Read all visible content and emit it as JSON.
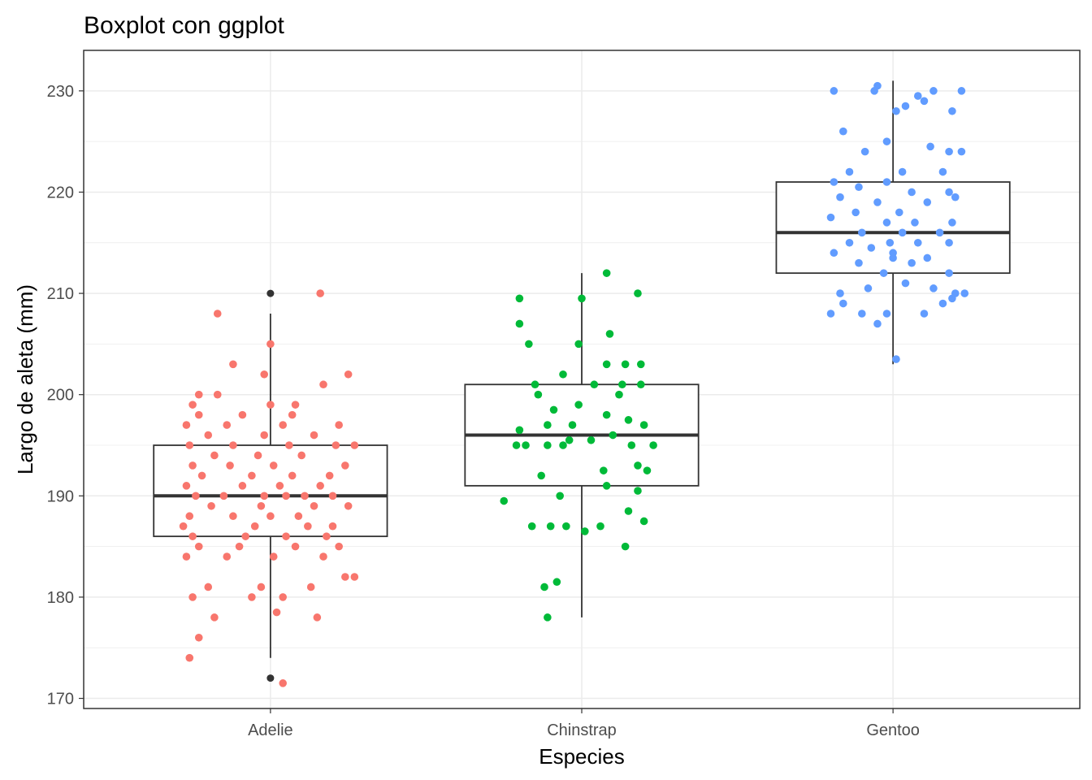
{
  "chart_data": {
    "type": "boxplot",
    "title": "Boxplot con ggplot",
    "xlabel": "Especies",
    "ylabel": "Largo de aleta (mm)",
    "categories": [
      "Adelie",
      "Chinstrap",
      "Gentoo"
    ],
    "ylim": [
      169,
      234
    ],
    "yticks": [
      170,
      180,
      190,
      200,
      210,
      220,
      230
    ],
    "grid": true,
    "legend": "none",
    "colors": {
      "Adelie": "#F8766D",
      "Chinstrap": "#00BA38",
      "Gentoo": "#619CFF",
      "box": "#333333",
      "grid": "#ebebeb",
      "panel_border": "#333333"
    },
    "boxes": [
      {
        "category": "Adelie",
        "q1": 186,
        "median": 190,
        "q3": 195,
        "whisker_low": 174,
        "whisker_high": 208,
        "outliers": [
          172,
          210
        ]
      },
      {
        "category": "Chinstrap",
        "q1": 191,
        "median": 196,
        "q3": 201,
        "whisker_low": 178,
        "whisker_high": 212,
        "outliers": []
      },
      {
        "category": "Gentoo",
        "q1": 212,
        "median": 216,
        "q3": 221,
        "whisker_low": 203,
        "whisker_high": 231,
        "outliers": []
      }
    ],
    "points": {
      "Adelie": [
        [
          -0.26,
          174.0
        ],
        [
          -0.23,
          176.0
        ],
        [
          -0.18,
          178.0
        ],
        [
          0.02,
          178.5
        ],
        [
          0.15,
          178.0
        ],
        [
          -0.06,
          180.0
        ],
        [
          0.04,
          180.0
        ],
        [
          -0.25,
          180.0
        ],
        [
          -0.2,
          181.0
        ],
        [
          -0.03,
          181.0
        ],
        [
          0.13,
          181.0
        ],
        [
          0.24,
          182.0
        ],
        [
          0.27,
          182.0
        ],
        [
          -0.27,
          184.0
        ],
        [
          -0.14,
          184.0
        ],
        [
          0.01,
          184.0
        ],
        [
          0.17,
          184.0
        ],
        [
          -0.23,
          185.0
        ],
        [
          -0.1,
          185.0
        ],
        [
          0.08,
          185.0
        ],
        [
          0.22,
          185.0
        ],
        [
          -0.25,
          186.0
        ],
        [
          -0.08,
          186.0
        ],
        [
          0.05,
          186.0
        ],
        [
          0.18,
          186.0
        ],
        [
          -0.28,
          187.0
        ],
        [
          -0.05,
          187.0
        ],
        [
          0.12,
          187.0
        ],
        [
          0.2,
          187.0
        ],
        [
          -0.26,
          188.0
        ],
        [
          -0.12,
          188.0
        ],
        [
          0.0,
          188.0
        ],
        [
          0.09,
          188.0
        ],
        [
          -0.19,
          189.0
        ],
        [
          -0.03,
          189.0
        ],
        [
          0.14,
          189.0
        ],
        [
          0.25,
          189.0
        ],
        [
          -0.24,
          190.0
        ],
        [
          -0.15,
          190.0
        ],
        [
          -0.02,
          190.0
        ],
        [
          0.05,
          190.0
        ],
        [
          0.11,
          190.0
        ],
        [
          0.2,
          190.0
        ],
        [
          -0.27,
          191.0
        ],
        [
          -0.09,
          191.0
        ],
        [
          0.03,
          191.0
        ],
        [
          0.16,
          191.0
        ],
        [
          -0.22,
          192.0
        ],
        [
          -0.06,
          192.0
        ],
        [
          0.07,
          192.0
        ],
        [
          0.19,
          192.0
        ],
        [
          -0.25,
          193.0
        ],
        [
          -0.13,
          193.0
        ],
        [
          0.01,
          193.0
        ],
        [
          0.24,
          193.0
        ],
        [
          -0.18,
          194.0
        ],
        [
          -0.04,
          194.0
        ],
        [
          0.1,
          194.0
        ],
        [
          -0.26,
          195.0
        ],
        [
          -0.12,
          195.0
        ],
        [
          0.06,
          195.0
        ],
        [
          0.21,
          195.0
        ],
        [
          0.27,
          195.0
        ],
        [
          -0.2,
          196.0
        ],
        [
          -0.02,
          196.0
        ],
        [
          0.14,
          196.0
        ],
        [
          -0.27,
          197.0
        ],
        [
          -0.14,
          197.0
        ],
        [
          0.04,
          197.0
        ],
        [
          0.22,
          197.0
        ],
        [
          -0.23,
          198.0
        ],
        [
          -0.09,
          198.0
        ],
        [
          0.07,
          198.0
        ],
        [
          -0.25,
          199.0
        ],
        [
          0.0,
          199.0
        ],
        [
          0.08,
          199.0
        ],
        [
          -0.17,
          200.0
        ],
        [
          -0.23,
          200.0
        ],
        [
          0.17,
          201.0
        ],
        [
          -0.02,
          202.0
        ],
        [
          0.25,
          202.0
        ],
        [
          -0.12,
          203.0
        ],
        [
          0.0,
          205.0
        ],
        [
          -0.17,
          208.0
        ],
        [
          0.16,
          210.0
        ],
        [
          0.04,
          171.5
        ]
      ],
      "Chinstrap": [
        [
          -0.11,
          178.0
        ],
        [
          -0.12,
          181.0
        ],
        [
          -0.08,
          181.5
        ],
        [
          -0.16,
          187.0
        ],
        [
          -0.1,
          187.0
        ],
        [
          -0.05,
          187.0
        ],
        [
          0.01,
          186.5
        ],
        [
          0.06,
          187.0
        ],
        [
          0.2,
          187.5
        ],
        [
          0.14,
          185.0
        ],
        [
          0.15,
          188.5
        ],
        [
          -0.25,
          189.5
        ],
        [
          -0.07,
          190.0
        ],
        [
          0.08,
          191.0
        ],
        [
          0.18,
          190.5
        ],
        [
          -0.13,
          192.0
        ],
        [
          0.07,
          192.5
        ],
        [
          0.18,
          193.0
        ],
        [
          0.21,
          192.5
        ],
        [
          -0.21,
          195.0
        ],
        [
          -0.18,
          195.0
        ],
        [
          -0.11,
          195.0
        ],
        [
          -0.06,
          195.0
        ],
        [
          -0.04,
          195.5
        ],
        [
          0.03,
          195.5
        ],
        [
          0.1,
          196.0
        ],
        [
          0.16,
          195.0
        ],
        [
          0.23,
          195.0
        ],
        [
          -0.2,
          196.5
        ],
        [
          -0.11,
          197.0
        ],
        [
          -0.03,
          197.0
        ],
        [
          0.08,
          198.0
        ],
        [
          0.15,
          197.5
        ],
        [
          0.2,
          197.0
        ],
        [
          -0.09,
          198.5
        ],
        [
          -0.01,
          199.0
        ],
        [
          -0.14,
          200.0
        ],
        [
          0.12,
          200.0
        ],
        [
          -0.15,
          201.0
        ],
        [
          0.04,
          201.0
        ],
        [
          0.13,
          201.0
        ],
        [
          0.19,
          201.0
        ],
        [
          -0.06,
          202.0
        ],
        [
          0.08,
          203.0
        ],
        [
          0.14,
          203.0
        ],
        [
          0.19,
          203.0
        ],
        [
          -0.17,
          205.0
        ],
        [
          -0.01,
          205.0
        ],
        [
          0.09,
          206.0
        ],
        [
          -0.2,
          207.0
        ],
        [
          -0.2,
          209.5
        ],
        [
          0.0,
          209.5
        ],
        [
          0.18,
          210.0
        ],
        [
          0.08,
          212.0
        ]
      ],
      "Gentoo": [
        [
          0.01,
          203.5
        ],
        [
          -0.05,
          207.0
        ],
        [
          -0.1,
          208.0
        ],
        [
          -0.02,
          208.0
        ],
        [
          0.1,
          208.0
        ],
        [
          -0.2,
          208.0
        ],
        [
          -0.16,
          209.0
        ],
        [
          0.16,
          209.0
        ],
        [
          0.19,
          209.5
        ],
        [
          0.23,
          210.0
        ],
        [
          -0.17,
          210.0
        ],
        [
          -0.08,
          210.5
        ],
        [
          0.04,
          211.0
        ],
        [
          0.13,
          210.5
        ],
        [
          -0.03,
          212.0
        ],
        [
          0.18,
          212.0
        ],
        [
          -0.11,
          213.0
        ],
        [
          0.06,
          213.0
        ],
        [
          0.11,
          213.5
        ],
        [
          -0.19,
          214.0
        ],
        [
          -0.07,
          214.5
        ],
        [
          0.0,
          214.0
        ],
        [
          -0.14,
          215.0
        ],
        [
          -0.01,
          215.0
        ],
        [
          0.08,
          215.0
        ],
        [
          0.18,
          215.0
        ],
        [
          -0.1,
          216.0
        ],
        [
          0.03,
          216.0
        ],
        [
          0.15,
          216.0
        ],
        [
          -0.02,
          217.0
        ],
        [
          0.07,
          217.0
        ],
        [
          0.19,
          217.0
        ],
        [
          -0.2,
          217.5
        ],
        [
          -0.12,
          218.0
        ],
        [
          0.02,
          218.0
        ],
        [
          -0.05,
          219.0
        ],
        [
          0.11,
          219.0
        ],
        [
          0.2,
          219.5
        ],
        [
          -0.17,
          219.5
        ],
        [
          -0.11,
          220.5
        ],
        [
          0.06,
          220.0
        ],
        [
          0.18,
          220.0
        ],
        [
          -0.19,
          221.0
        ],
        [
          -0.02,
          221.0
        ],
        [
          -0.14,
          222.0
        ],
        [
          0.03,
          222.0
        ],
        [
          0.16,
          222.0
        ],
        [
          0.18,
          224.0
        ],
        [
          -0.09,
          224.0
        ],
        [
          -0.02,
          225.0
        ],
        [
          0.12,
          224.5
        ],
        [
          0.22,
          224.0
        ],
        [
          -0.16,
          226.0
        ],
        [
          0.01,
          228.0
        ],
        [
          0.04,
          228.5
        ],
        [
          0.1,
          229.0
        ],
        [
          0.19,
          228.0
        ],
        [
          -0.19,
          230.0
        ],
        [
          -0.06,
          230.0
        ],
        [
          0.13,
          230.0
        ],
        [
          0.22,
          230.0
        ],
        [
          -0.05,
          230.5
        ],
        [
          0.08,
          229.5
        ],
        [
          0.2,
          210.0
        ],
        [
          0.0,
          213.5
        ]
      ]
    }
  }
}
